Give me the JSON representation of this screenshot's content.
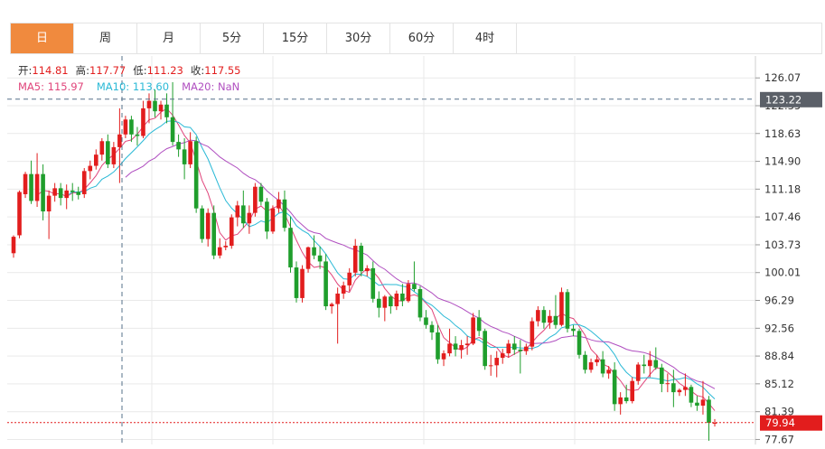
{
  "tabs": [
    {
      "label": "日",
      "active": true
    },
    {
      "label": "周",
      "active": false
    },
    {
      "label": "月",
      "active": false
    },
    {
      "label": "5分",
      "active": false
    },
    {
      "label": "15分",
      "active": false
    },
    {
      "label": "30分",
      "active": false
    },
    {
      "label": "60分",
      "active": false
    },
    {
      "label": "4时",
      "active": false
    }
  ],
  "ohlc_legend": [
    {
      "label": "开:",
      "value": "114.81"
    },
    {
      "label": "高:",
      "value": "117.77"
    },
    {
      "label": "低:",
      "value": "111.23"
    },
    {
      "label": "收:",
      "value": "117.55"
    }
  ],
  "ma_legend": [
    {
      "label": "MA5: 115.97",
      "color": "#e0457b"
    },
    {
      "label": "MA10: 113.60",
      "color": "#2ab9d6"
    },
    {
      "label": "MA20: NaN",
      "color": "#b04fc0"
    }
  ],
  "colors": {
    "up": "#e21d1d",
    "down": "#1f9e2c",
    "grid": "#e9e9e9",
    "crosshair": "#56708a",
    "tag_hover": "#5b6068",
    "tag_last": "#e21d1d"
  },
  "chart_data": {
    "type": "candlestick",
    "y_ticks": [
      "126.07",
      "122.35",
      "118.63",
      "114.90",
      "111.18",
      "107.46",
      "103.73",
      "100.01",
      "96.29",
      "92.56",
      "88.84",
      "85.12",
      "81.39",
      "77.67"
    ],
    "ylim": [
      77.0,
      129.0
    ],
    "crosshair_price": "123.22",
    "last_price": "79.94",
    "grid": true,
    "candles": [
      [
        102.6,
        105.0,
        102.0,
        104.8
      ],
      [
        105.0,
        111.0,
        104.6,
        110.8
      ],
      [
        110.5,
        113.5,
        110.0,
        113.2
      ],
      [
        113.2,
        115.0,
        109.2,
        109.6
      ],
      [
        109.6,
        116.0,
        108.8,
        113.2
      ],
      [
        113.2,
        114.5,
        107.0,
        108.2
      ],
      [
        108.2,
        111.0,
        104.5,
        110.3
      ],
      [
        110.3,
        112.0,
        109.5,
        111.3
      ],
      [
        111.3,
        112.0,
        109.0,
        110.0
      ],
      [
        110.0,
        111.8,
        108.5,
        111.0
      ],
      [
        111.0,
        112.0,
        109.6,
        110.8
      ],
      [
        110.8,
        111.5,
        109.8,
        110.4
      ],
      [
        110.5,
        114.0,
        110.0,
        113.6
      ],
      [
        113.6,
        115.0,
        112.5,
        114.3
      ],
      [
        114.3,
        116.5,
        113.8,
        115.8
      ],
      [
        115.8,
        118.0,
        115.0,
        117.6
      ],
      [
        117.6,
        118.5,
        114.0,
        114.5
      ],
      [
        114.5,
        117.5,
        114.0,
        116.8
      ],
      [
        116.8,
        122.0,
        112.0,
        118.5
      ],
      [
        118.5,
        121.0,
        118.0,
        120.5
      ],
      [
        120.5,
        121.0,
        117.5,
        118.5
      ],
      [
        118.5,
        119.5,
        117.0,
        118.3
      ],
      [
        118.3,
        123.0,
        118.0,
        122.0
      ],
      [
        122.0,
        124.0,
        120.0,
        123.0
      ],
      [
        123.0,
        124.5,
        120.8,
        121.6
      ],
      [
        121.6,
        123.0,
        120.5,
        122.5
      ],
      [
        122.5,
        124.0,
        120.0,
        120.8
      ],
      [
        120.8,
        125.5,
        117.0,
        117.5
      ],
      [
        117.5,
        118.5,
        115.5,
        116.5
      ],
      [
        116.5,
        118.0,
        112.5,
        114.5
      ],
      [
        114.5,
        118.8,
        114.0,
        117.6
      ],
      [
        117.6,
        118.2,
        108.0,
        108.6
      ],
      [
        108.6,
        109.0,
        104.0,
        104.5
      ],
      [
        104.5,
        108.6,
        103.5,
        108.0
      ],
      [
        108.0,
        109.0,
        101.8,
        102.3
      ],
      [
        102.3,
        104.6,
        101.9,
        103.4
      ],
      [
        103.4,
        104.2,
        103.0,
        103.6
      ],
      [
        103.6,
        107.8,
        103.2,
        107.4
      ],
      [
        107.4,
        109.6,
        106.2,
        109.0
      ],
      [
        109.0,
        111.0,
        106.0,
        106.6
      ],
      [
        106.6,
        109.0,
        105.2,
        108.0
      ],
      [
        108.0,
        112.0,
        107.5,
        111.5
      ],
      [
        111.5,
        112.0,
        109.0,
        109.5
      ],
      [
        109.5,
        110.0,
        104.5,
        105.5
      ],
      [
        105.5,
        109.0,
        105.2,
        108.6
      ],
      [
        108.6,
        110.8,
        108.0,
        109.8
      ],
      [
        109.8,
        111.0,
        105.5,
        106.0
      ],
      [
        106.0,
        107.5,
        100.0,
        100.7
      ],
      [
        100.7,
        101.5,
        96.0,
        96.6
      ],
      [
        96.6,
        101.0,
        96.0,
        100.5
      ],
      [
        100.5,
        103.5,
        100.0,
        103.4
      ],
      [
        103.4,
        105.0,
        101.8,
        102.3
      ],
      [
        102.3,
        103.5,
        100.5,
        101.5
      ],
      [
        101.5,
        102.5,
        95.0,
        95.5
      ],
      [
        95.5,
        96.0,
        94.5,
        95.8
      ],
      [
        95.8,
        98.0,
        90.5,
        97.2
      ],
      [
        97.2,
        98.8,
        96.5,
        98.3
      ],
      [
        98.3,
        100.6,
        97.5,
        100.0
      ],
      [
        100.0,
        104.5,
        99.5,
        103.6
      ],
      [
        103.6,
        104.0,
        99.5,
        100.2
      ],
      [
        100.2,
        101.0,
        99.5,
        100.6
      ],
      [
        100.6,
        101.5,
        96.0,
        96.5
      ],
      [
        96.5,
        97.5,
        94.0,
        95.3
      ],
      [
        95.3,
        97.0,
        93.5,
        96.8
      ],
      [
        96.8,
        97.0,
        94.5,
        95.5
      ],
      [
        95.5,
        97.6,
        95.0,
        97.2
      ],
      [
        97.2,
        98.5,
        95.5,
        96.2
      ],
      [
        96.2,
        99.0,
        96.0,
        98.5
      ],
      [
        98.5,
        101.5,
        97.5,
        97.8
      ],
      [
        97.8,
        98.2,
        93.5,
        94.0
      ],
      [
        94.0,
        95.0,
        92.5,
        93.0
      ],
      [
        93.0,
        93.5,
        91.0,
        92.0
      ],
      [
        92.0,
        93.0,
        87.8,
        88.4
      ],
      [
        88.4,
        89.6,
        87.5,
        89.2
      ],
      [
        89.2,
        92.5,
        88.8,
        90.5
      ],
      [
        90.5,
        91.5,
        88.8,
        89.7
      ],
      [
        89.7,
        91.0,
        88.5,
        90.3
      ],
      [
        90.3,
        91.5,
        89.0,
        90.5
      ],
      [
        90.5,
        94.6,
        90.3,
        94.0
      ],
      [
        94.0,
        95.0,
        91.5,
        92.2
      ],
      [
        92.2,
        92.5,
        87.0,
        87.5
      ],
      [
        87.5,
        89.0,
        86.2,
        87.6
      ],
      [
        87.6,
        89.5,
        86.0,
        88.6
      ],
      [
        88.6,
        89.8,
        87.8,
        89.2
      ],
      [
        89.2,
        91.0,
        88.6,
        90.5
      ],
      [
        90.5,
        91.5,
        89.0,
        89.7
      ],
      [
        89.7,
        91.0,
        86.5,
        89.5
      ],
      [
        89.5,
        90.5,
        89.0,
        90.1
      ],
      [
        90.1,
        94.0,
        89.6,
        93.5
      ],
      [
        93.5,
        95.5,
        92.8,
        95.0
      ],
      [
        95.0,
        95.5,
        92.5,
        93.3
      ],
      [
        93.3,
        95.0,
        92.5,
        94.2
      ],
      [
        94.2,
        97.0,
        92.5,
        93.0
      ],
      [
        93.0,
        98.0,
        92.8,
        97.4
      ],
      [
        97.4,
        97.8,
        92.0,
        92.5
      ],
      [
        92.5,
        93.0,
        91.5,
        92.2
      ],
      [
        92.2,
        92.5,
        88.5,
        89.0
      ],
      [
        89.0,
        89.5,
        86.5,
        87.0
      ],
      [
        87.0,
        88.5,
        86.6,
        88.0
      ],
      [
        88.0,
        89.0,
        87.5,
        88.4
      ],
      [
        88.4,
        89.5,
        86.0,
        86.5
      ],
      [
        86.5,
        87.5,
        85.8,
        87.0
      ],
      [
        87.0,
        88.0,
        81.5,
        82.4
      ],
      [
        82.4,
        84.0,
        81.0,
        83.3
      ],
      [
        83.3,
        85.0,
        82.5,
        82.8
      ],
      [
        82.8,
        86.0,
        82.5,
        85.5
      ],
      [
        85.5,
        88.0,
        85.0,
        87.7
      ],
      [
        87.7,
        89.0,
        86.5,
        87.5
      ],
      [
        87.5,
        89.5,
        86.0,
        88.3
      ],
      [
        88.3,
        90.0,
        87.0,
        87.3
      ],
      [
        87.3,
        87.8,
        84.0,
        85.1
      ],
      [
        85.1,
        86.5,
        84.0,
        85.2
      ],
      [
        85.2,
        87.0,
        82.0,
        84.0
      ],
      [
        84.0,
        84.5,
        83.5,
        84.3
      ],
      [
        84.3,
        86.5,
        83.5,
        84.7
      ],
      [
        84.7,
        85.0,
        82.0,
        82.6
      ],
      [
        82.6,
        83.5,
        81.5,
        82.2
      ],
      [
        82.2,
        85.5,
        81.0,
        83.0
      ],
      [
        83.0,
        83.5,
        77.5,
        79.9
      ],
      [
        79.9,
        80.4,
        79.4,
        79.9
      ]
    ]
  }
}
